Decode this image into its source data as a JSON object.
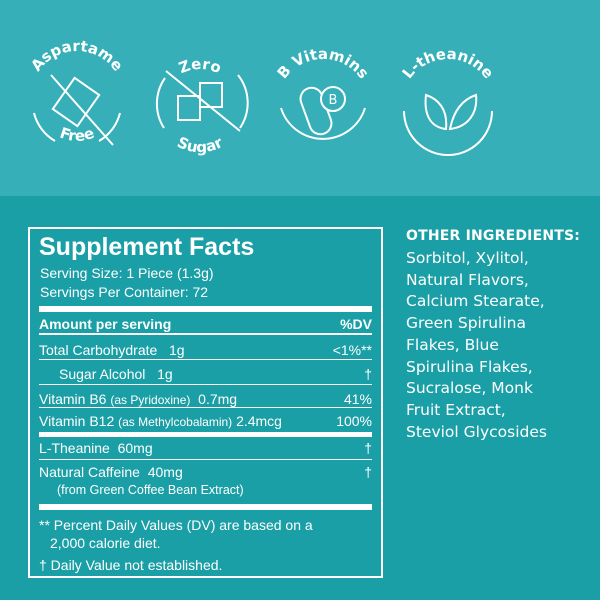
{
  "badges": [
    {
      "top": "Aspartame",
      "bottom": "Free",
      "icon": "crossed-out-sweetener-packet-icon"
    },
    {
      "top": "Zero",
      "bottom": "Sugar",
      "icon": "crossed-out-sugar-cubes-icon"
    },
    {
      "top": "B Vitamins",
      "bottom": "",
      "icon": "capsule-vitamin-b-icon",
      "glyph": "B"
    },
    {
      "top": "L-theanine",
      "bottom": "",
      "icon": "leaves-icon"
    }
  ],
  "facts": {
    "title": "Supplement Facts",
    "serving_size": "Serving Size: 1 Piece (1.3g)",
    "servings_per_container": "Servings Per Container: 72",
    "amount_header": "Amount per serving",
    "dv_header": "%DV",
    "rows": [
      {
        "name": "Total Carbohydrate",
        "note": "",
        "amount": "1g",
        "dv": "<1%**"
      },
      {
        "name": "Sugar Alcohol",
        "note": "",
        "amount": "1g",
        "dv": "†"
      },
      {
        "name": "Vitamin B6",
        "note": "(as Pyridoxine)",
        "amount": "0.7mg",
        "dv": "41%"
      },
      {
        "name": "Vitamin B12",
        "note": "(as Methylcobalamin)",
        "amount": "2.4mcg",
        "dv": "100%"
      },
      {
        "name": "L-Theanine",
        "note": "",
        "amount": "60mg",
        "dv": "†"
      },
      {
        "name": "Natural Caffeine",
        "note": "(from Green Coffee Bean Extract)",
        "amount": "40mg",
        "dv": "†"
      }
    ],
    "footnote1a": "** Percent Daily Values (DV) are based on a",
    "footnote1b": "2,000 calorie diet.",
    "footnote2": "† Daily Value not established."
  },
  "other_ingredients": {
    "heading": "OTHER INGREDIENTS:",
    "lines": [
      "Sorbitol, Xylitol,",
      "Natural Flavors,",
      "Calcium Stearate,",
      "Green Spirulina",
      "Flakes, Blue",
      "Spirulina Flakes,",
      "Sucralose, Monk",
      "Fruit Extract,",
      "Steviol Glycosides"
    ]
  },
  "colors": {
    "top_bg": "#36afb8",
    "bottom_bg": "#1a9fa6",
    "text": "#ffffff"
  }
}
